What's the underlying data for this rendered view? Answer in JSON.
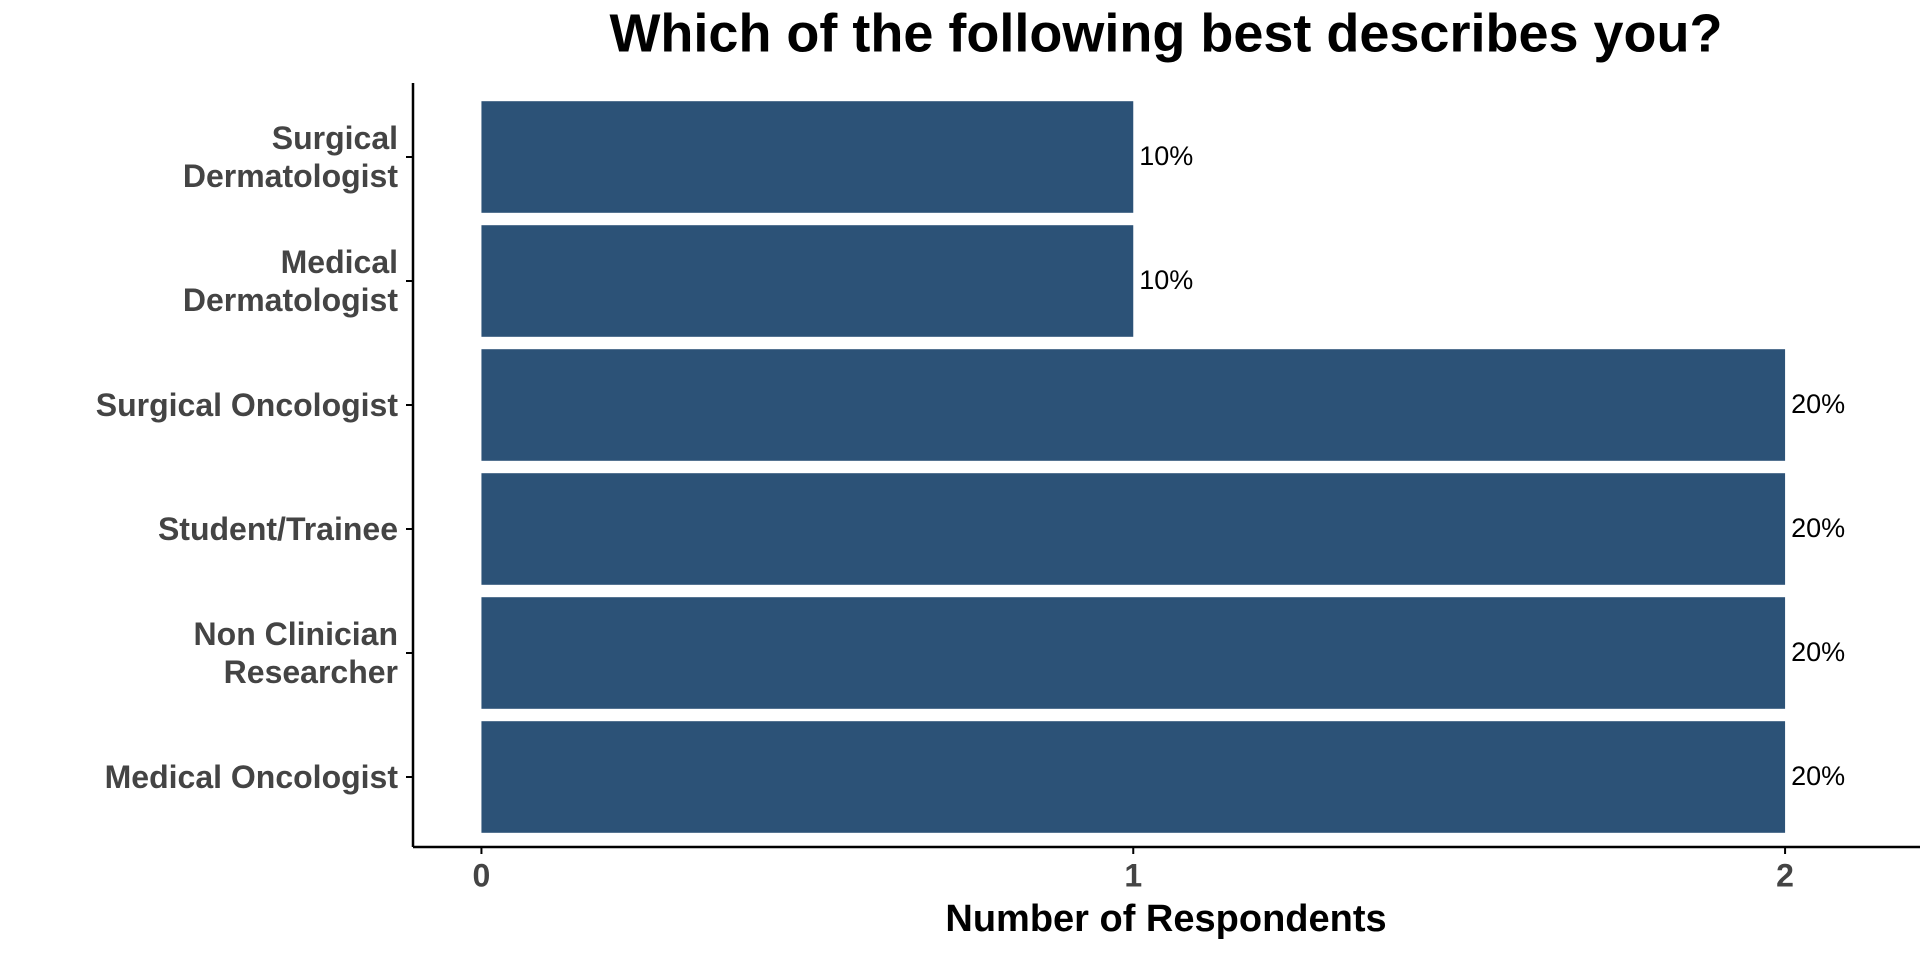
{
  "chart_data": {
    "type": "hbar",
    "title": "Which of the following best describes you?",
    "x_label": "Number of Respondents",
    "categories": [
      "Surgical\nDermatologist",
      "Medical\nDermatologist",
      "Surgical Oncologist",
      "Student/Trainee",
      "Non Clinician\nResearcher",
      "Medical Oncologist"
    ],
    "values": [
      1,
      1,
      2,
      2,
      2,
      2
    ],
    "value_labels": [
      "10%",
      "10%",
      "20%",
      "20%",
      "20%",
      "20%"
    ],
    "color": "#2c5277",
    "xlim": [
      -0.105,
      2.207
    ],
    "xticks": [
      0,
      1,
      2
    ],
    "grid": false
  }
}
